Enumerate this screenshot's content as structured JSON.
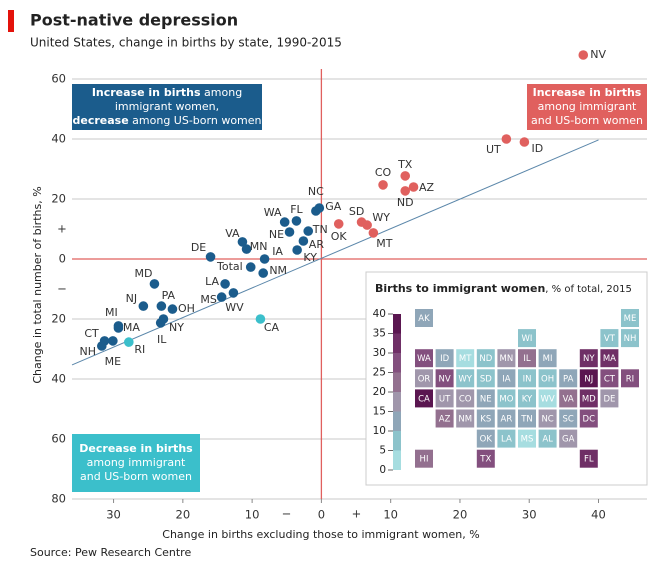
{
  "chart_data": {
    "type": "scatter",
    "title": "Post-native depression",
    "subtitle": "United States, change in births by state, 1990-2015",
    "xlabel": "Change in births excluding those to immigrant women, %",
    "ylabel": "Change in total number of births, %",
    "source": "Source: Pew Research Centre",
    "xlim": [
      -36,
      47
    ],
    "ylim": [
      -80,
      70
    ],
    "xticks": [
      {
        "value": -30,
        "label": "30"
      },
      {
        "value": -20,
        "label": "20"
      },
      {
        "value": -10,
        "label": "10"
      },
      0,
      10,
      20,
      30,
      40
    ],
    "yticks": [
      {
        "value": -80,
        "label": "80"
      },
      {
        "value": -60,
        "label": "60"
      },
      {
        "value": -40,
        "label": "40"
      },
      {
        "value": -20,
        "label": "20"
      },
      0,
      20,
      40,
      60
    ],
    "sign_labels": {
      "x_neg": "−",
      "x_pos": "+",
      "y_neg": "−",
      "y_pos": "+"
    },
    "grid": true,
    "zero_line_color": "#e0605e",
    "trend_line": {
      "x": [
        -36,
        40
      ],
      "y": [
        -35.3,
        39.7
      ],
      "color": "#5b87aa"
    },
    "labels": [
      "NV",
      "UT",
      "ID",
      "CO",
      "TX",
      "AZ",
      "ND",
      "SD",
      "WY",
      "MT",
      "OK",
      "NC",
      "GA",
      "WA",
      "FL",
      "NE",
      "TN",
      "AR",
      "KY",
      "VA",
      "MN",
      "IA",
      "DE",
      "Total",
      "NM",
      "LA",
      "MS",
      "WV",
      "MD",
      "PA",
      "OH",
      "NJ",
      "NY",
      "IL",
      "MI",
      "MA",
      "CT",
      "NH",
      "ME",
      "RI",
      "CA"
    ],
    "x": [
      37.8,
      26.7,
      29.3,
      8.9,
      12.1,
      13.3,
      12.1,
      5.8,
      6.6,
      7.5,
      2.5,
      -0.8,
      -0.3,
      -5.3,
      -3.6,
      -4.6,
      -1.9,
      -2.6,
      -3.5,
      -11.4,
      -10.8,
      -8.2,
      -16,
      -10.2,
      -8.4,
      -13.9,
      -14.4,
      -12.7,
      -24.1,
      -23.1,
      -21.5,
      -25.7,
      -22.8,
      -23.2,
      -29.3,
      -29.3,
      -31.3,
      -31.7,
      -30.1,
      -27.8,
      -8.8
    ],
    "y": [
      68,
      40,
      39,
      24.7,
      27.7,
      24,
      22.7,
      12.3,
      11.3,
      8.7,
      11.7,
      16,
      17,
      12.3,
      12.7,
      9,
      9.3,
      6,
      3,
      5.7,
      3.3,
      0,
      0.7,
      -2.7,
      -4.7,
      -8.3,
      -12.7,
      -11.3,
      -8.3,
      -15.7,
      -16.7,
      -15.7,
      -20,
      -21.3,
      -22.3,
      -23,
      -27.3,
      -29,
      -27.3,
      -27.7,
      -20
    ],
    "colors": [
      "#e0605e",
      "#e0605e",
      "#e0605e",
      "#e0605e",
      "#e0605e",
      "#e0605e",
      "#e0605e",
      "#e0605e",
      "#e0605e",
      "#e0605e",
      "#e0605e",
      "#1b5c8c",
      "#1b5c8c",
      "#1b5c8c",
      "#1b5c8c",
      "#1b5c8c",
      "#1b5c8c",
      "#1b5c8c",
      "#1b5c8c",
      "#1b5c8c",
      "#1b5c8c",
      "#1b5c8c",
      "#1b5c8c",
      "#1b5c8c",
      "#1b5c8c",
      "#1b5c8c",
      "#1b5c8c",
      "#1b5c8c",
      "#1b5c8c",
      "#1b5c8c",
      "#1b5c8c",
      "#1b5c8c",
      "#1b5c8c",
      "#1b5c8c",
      "#1b5c8c",
      "#1b5c8c",
      "#1b5c8c",
      "#1b5c8c",
      "#1b5c8c",
      "#3bbfcb",
      "#3bbfcb"
    ],
    "annotations": [
      {
        "corner": "top-left",
        "color": "#1b5c8c",
        "lines": [
          [
            {
              "text": "Increase in births",
              "bold": true
            },
            {
              "text": " among",
              "bold": false
            }
          ],
          [
            {
              "text": "immigrant women,",
              "bold": false
            }
          ],
          [
            {
              "text": "decrease",
              "bold": true
            },
            {
              "text": " among US-born women",
              "bold": false
            }
          ]
        ]
      },
      {
        "corner": "top-right",
        "color": "#e0605e",
        "lines": [
          [
            {
              "text": "Increase in births",
              "bold": true
            }
          ],
          [
            {
              "text": "among immigrant",
              "bold": false
            }
          ],
          [
            {
              "text": "and US-born women",
              "bold": false
            }
          ]
        ]
      },
      {
        "corner": "bottom-left",
        "color": "#3bbfcb",
        "lines": [
          [
            {
              "text": "Decrease in births",
              "bold": true
            }
          ],
          [
            {
              "text": "among immigrant",
              "bold": false
            }
          ],
          [
            {
              "text": "and US-born women",
              "bold": false
            }
          ]
        ]
      }
    ],
    "inset": {
      "title_parts": [
        {
          "text": "Births to immigrant women",
          "bold": true
        },
        {
          "text": ", % of total, 2015",
          "bold": false
        }
      ],
      "clim": [
        0,
        40
      ],
      "cticks": [
        0,
        5,
        10,
        15,
        20,
        25,
        30,
        35,
        40
      ],
      "colorscale": [
        "#a6dde0",
        "#8cc3cb",
        "#8fa6b8",
        "#a096ab",
        "#93708f",
        "#834f7e",
        "#6f2f66",
        "#5a1650"
      ],
      "rows": [
        [
          "AK",
          null,
          null,
          null,
          null,
          null,
          null,
          null,
          null,
          null,
          "ME"
        ],
        [
          null,
          null,
          null,
          null,
          null,
          "WI",
          null,
          null,
          null,
          "VT",
          "NH"
        ],
        [
          "WA",
          "ID",
          "MT",
          "ND",
          "MN",
          "IL",
          "MI",
          null,
          "NY",
          "MA",
          null
        ],
        [
          "OR",
          "NV",
          "WY",
          "SD",
          "IA",
          "IN",
          "OH",
          "PA",
          "NJ",
          "CT",
          "RI"
        ],
        [
          "CA",
          "UT",
          "CO",
          "NE",
          "MO",
          "KY",
          "WV",
          "VA",
          "MD",
          "DE",
          null
        ],
        [
          null,
          "AZ",
          "NM",
          "KS",
          "AR",
          "TN",
          "NC",
          "SC",
          "DC",
          null,
          null
        ],
        [
          null,
          null,
          null,
          "OK",
          "LA",
          "MS",
          "AL",
          "GA",
          null,
          null,
          null
        ],
        [
          "HI",
          null,
          null,
          "TX",
          null,
          null,
          null,
          null,
          "FL",
          null,
          null
        ]
      ],
      "values": [
        [
          12,
          null,
          null,
          null,
          null,
          null,
          null,
          null,
          null,
          null,
          5
        ],
        [
          null,
          null,
          null,
          null,
          null,
          8,
          null,
          null,
          null,
          5,
          8
        ],
        [
          27,
          11,
          2,
          9,
          19,
          23,
          12,
          null,
          32,
          31,
          null
        ],
        [
          17,
          29,
          7,
          9,
          10,
          9,
          8,
          14,
          39,
          27,
          26
        ],
        [
          40,
          16,
          18,
          14,
          7,
          6,
          2,
          22,
          30,
          18,
          null
        ],
        [
          null,
          23,
          16,
          14,
          11,
          10,
          16,
          10,
          26,
          null,
          null
        ],
        [
          null,
          null,
          null,
          12,
          7,
          4,
          7,
          19,
          null,
          null,
          null
        ],
        [
          24,
          null,
          null,
          28,
          null,
          null,
          null,
          null,
          33,
          null,
          null
        ]
      ]
    }
  }
}
